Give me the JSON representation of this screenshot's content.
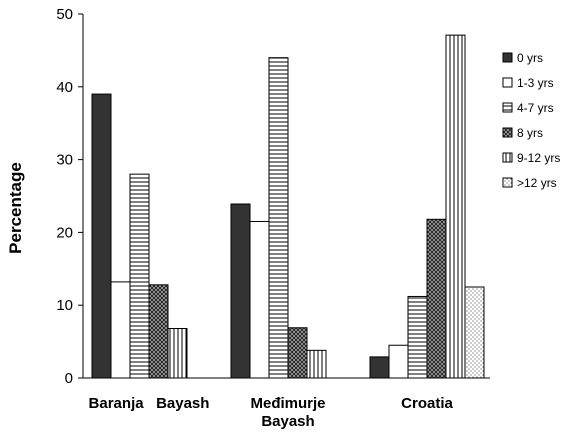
{
  "chart_data": {
    "type": "bar",
    "title": "",
    "xlabel": "",
    "ylabel": "Percentage",
    "ylim": [
      0,
      50
    ],
    "yticks": [
      0,
      10,
      20,
      30,
      40,
      50
    ],
    "grid": false,
    "legend_position": "right",
    "categories": [
      [
        "Baranja",
        "Bayash"
      ],
      [
        "Međimurje",
        "Bayash"
      ],
      [
        "Croatia"
      ]
    ],
    "series": [
      {
        "name": "0 yrs",
        "values": [
          39,
          23.9,
          2.9
        ],
        "color": "#333333",
        "pattern": "solid"
      },
      {
        "name": "1-3 yrs",
        "values": [
          13.2,
          21.5,
          4.5
        ],
        "color": "#ffffff",
        "pattern": "none"
      },
      {
        "name": "4-7 yrs",
        "values": [
          28,
          44,
          11.2
        ],
        "color": "#ffffff",
        "pattern": "horizontal-lines"
      },
      {
        "name": "8 yrs",
        "values": [
          12.8,
          6.9,
          21.8
        ],
        "color": "#888888",
        "pattern": "crosshatch"
      },
      {
        "name": "9-12 yrs",
        "values": [
          6.8,
          3.8,
          47.1
        ],
        "color": "#ffffff",
        "pattern": "vertical-lines"
      },
      {
        "name": ">12 yrs",
        "values": [
          0,
          0,
          12.5
        ],
        "color": "#ffffff",
        "pattern": "dots"
      }
    ]
  }
}
